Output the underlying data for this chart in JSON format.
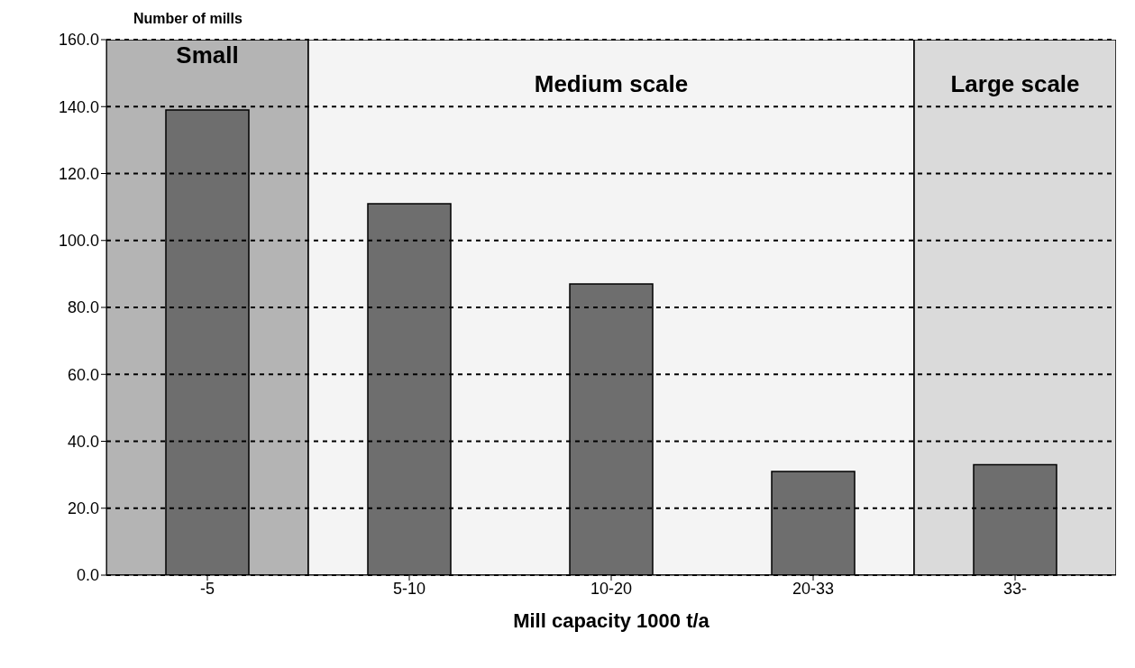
{
  "chart_data": {
    "type": "bar",
    "ylabel": "Number of mills",
    "xlabel": "Mill capacity 1000 t/a",
    "categories": [
      "-5",
      "5-10",
      "10-20",
      "20-33",
      "33-"
    ],
    "values": [
      139,
      111,
      87,
      31,
      33
    ],
    "color": "#6e6e6e",
    "ylim": [
      0,
      160
    ],
    "yticks": [
      {
        "value": 0,
        "label": "0.0"
      },
      {
        "value": 20,
        "label": "20.0"
      },
      {
        "value": 40,
        "label": "40.0"
      },
      {
        "value": 60,
        "label": "60.0"
      },
      {
        "value": 80,
        "label": "80.0"
      },
      {
        "value": 100,
        "label": "100.0"
      },
      {
        "value": 120,
        "label": "120.0"
      },
      {
        "value": 140,
        "label": "140.0"
      },
      {
        "value": 160,
        "label": "160.0"
      }
    ],
    "grid": "y",
    "bands": [
      {
        "axis": "x",
        "from": "-5",
        "to": "-5",
        "label": "Small",
        "color": "#b4b4b4"
      },
      {
        "axis": "x",
        "from": "5-10",
        "to": "20-33",
        "label": "Medium scale",
        "color": "#f4f4f4"
      },
      {
        "axis": "x",
        "from": "33-",
        "to": "33-",
        "label": "Large scale",
        "color": "#dadada"
      }
    ]
  }
}
